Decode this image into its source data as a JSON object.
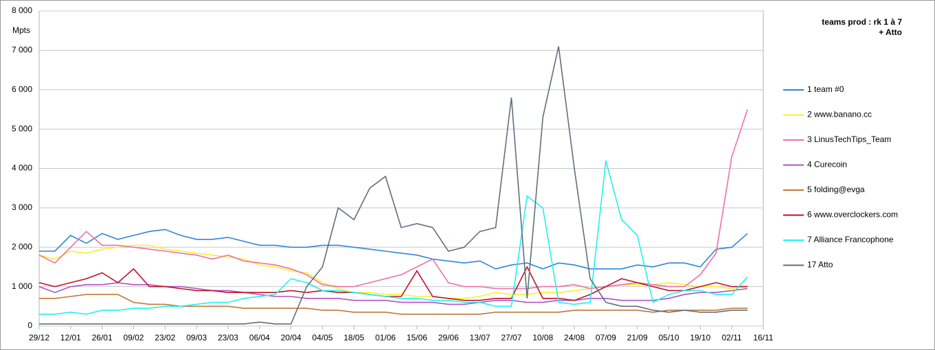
{
  "chart_data": {
    "type": "line",
    "title": "teams prod :  rk 1 à 7",
    "subtitle": "+ Atto",
    "y_label": "Mpts",
    "x": [
      0,
      7,
      14,
      21,
      28,
      35,
      42,
      49,
      56,
      63,
      70,
      77,
      84,
      91,
      98,
      105,
      112,
      119,
      126,
      133,
      140,
      147,
      154,
      161,
      168,
      175,
      182,
      189,
      196,
      203,
      210,
      217,
      224,
      231,
      238,
      245,
      252,
      259,
      266,
      273,
      280,
      287,
      294,
      301,
      308,
      315
    ],
    "xlim": [
      0,
      322
    ],
    "xticks": [
      {
        "value": 0,
        "label": "29/12"
      },
      {
        "value": 14,
        "label": "12/01"
      },
      {
        "value": 28,
        "label": "26/01"
      },
      {
        "value": 42,
        "label": "09/02"
      },
      {
        "value": 56,
        "label": "23/02"
      },
      {
        "value": 70,
        "label": "09/03"
      },
      {
        "value": 84,
        "label": "23/03"
      },
      {
        "value": 98,
        "label": "06/04"
      },
      {
        "value": 112,
        "label": "20/04"
      },
      {
        "value": 126,
        "label": "04/05"
      },
      {
        "value": 140,
        "label": "18/05"
      },
      {
        "value": 154,
        "label": "01/06"
      },
      {
        "value": 168,
        "label": "15/06"
      },
      {
        "value": 182,
        "label": "29/06"
      },
      {
        "value": 196,
        "label": "13/07"
      },
      {
        "value": 210,
        "label": "27/07"
      },
      {
        "value": 224,
        "label": "10/08"
      },
      {
        "value": 238,
        "label": "24/08"
      },
      {
        "value": 252,
        "label": "07/09"
      },
      {
        "value": 266,
        "label": "21/09"
      },
      {
        "value": 280,
        "label": "05/10"
      },
      {
        "value": 294,
        "label": "19/10"
      },
      {
        "value": 308,
        "label": "02/11"
      },
      {
        "value": 322,
        "label": "16/11"
      }
    ],
    "ylim": [
      0,
      8000
    ],
    "yticks": [
      0,
      {
        "value": 1000,
        "label": "1 000"
      },
      {
        "value": 2000,
        "label": "2 000"
      },
      {
        "value": 3000,
        "label": "3 000"
      },
      {
        "value": 4000,
        "label": "4 000"
      },
      {
        "value": 5000,
        "label": "5 000"
      },
      {
        "value": 6000,
        "label": "6 000"
      },
      {
        "value": 7000,
        "label": "7 000"
      },
      {
        "value": 8000,
        "label": "8 000"
      }
    ],
    "grid": true,
    "legend": "right",
    "series": [
      {
        "name": "1 team #0",
        "color": "#2a86d9",
        "values": [
          1900,
          1900,
          2300,
          2100,
          2350,
          2200,
          2300,
          2400,
          2450,
          2300,
          2200,
          2200,
          2250,
          2150,
          2050,
          2050,
          2000,
          2000,
          2050,
          2050,
          2000,
          1950,
          1900,
          1850,
          1800,
          1700,
          1650,
          1600,
          1650,
          1450,
          1550,
          1600,
          1450,
          1600,
          1550,
          1450,
          1450,
          1450,
          1550,
          1500,
          1600,
          1600,
          1500,
          1950,
          2000,
          2350
        ]
      },
      {
        "name": "2 www.banano.cc",
        "color": "#f2f230",
        "values": [
          1800,
          1700,
          1900,
          1850,
          1950,
          2000,
          2050,
          2050,
          1950,
          1900,
          1850,
          1800,
          1750,
          1700,
          1550,
          1500,
          1400,
          1350,
          1100,
          950,
          850,
          850,
          800,
          800,
          750,
          750,
          700,
          700,
          750,
          850,
          800,
          800,
          850,
          850,
          900,
          950,
          1000,
          1050,
          1050,
          1050,
          1100,
          1050,
          1000,
          1000,
          950,
          1000
        ]
      },
      {
        "name": "3 LinusTechTips_Team",
        "color": "#ee6fa8",
        "values": [
          1800,
          1600,
          2000,
          2400,
          2050,
          2050,
          2000,
          1950,
          1900,
          1850,
          1800,
          1700,
          1800,
          1650,
          1600,
          1550,
          1450,
          1300,
          1050,
          1000,
          1000,
          1100,
          1200,
          1300,
          1500,
          1700,
          1100,
          1000,
          1000,
          950,
          950,
          950,
          1000,
          1000,
          1050,
          950,
          1000,
          1050,
          1100,
          1050,
          1000,
          1000,
          1300,
          1850,
          4300,
          5500
        ]
      },
      {
        "name": "4 Curecoin",
        "color": "#b050c8",
        "values": [
          1000,
          850,
          1000,
          1050,
          1050,
          1100,
          1050,
          1050,
          1000,
          1000,
          950,
          900,
          900,
          850,
          800,
          750,
          750,
          700,
          700,
          700,
          650,
          650,
          650,
          600,
          600,
          600,
          550,
          550,
          600,
          650,
          650,
          600,
          600,
          650,
          650,
          700,
          700,
          650,
          650,
          650,
          700,
          800,
          850,
          850,
          900,
          950
        ]
      },
      {
        "name": "5 folding@evga",
        "color": "#c07838",
        "values": [
          700,
          700,
          750,
          800,
          800,
          800,
          600,
          550,
          550,
          500,
          500,
          500,
          500,
          450,
          450,
          450,
          450,
          450,
          400,
          400,
          350,
          350,
          350,
          300,
          300,
          300,
          300,
          300,
          300,
          350,
          350,
          350,
          350,
          350,
          400,
          400,
          400,
          400,
          400,
          350,
          400,
          400,
          400,
          400,
          450,
          450
        ]
      },
      {
        "name": "6 www.overclockers.com",
        "color": "#c0102a",
        "values": [
          1100,
          1000,
          1100,
          1200,
          1350,
          1100,
          1450,
          1000,
          1000,
          950,
          900,
          900,
          850,
          850,
          850,
          850,
          900,
          850,
          900,
          850,
          850,
          800,
          750,
          750,
          1400,
          750,
          700,
          650,
          650,
          700,
          700,
          1500,
          700,
          700,
          650,
          800,
          1000,
          1200,
          1100,
          1000,
          900,
          900,
          1000,
          1100,
          1000,
          1000
        ]
      },
      {
        "name": "7 Alliance Francophone",
        "color": "#22f0f0",
        "values": [
          300,
          300,
          350,
          300,
          400,
          400,
          450,
          450,
          500,
          500,
          550,
          600,
          600,
          700,
          750,
          800,
          1200,
          1100,
          900,
          900,
          850,
          800,
          750,
          700,
          700,
          650,
          650,
          600,
          600,
          500,
          500,
          3300,
          3000,
          600,
          550,
          600,
          4200,
          2700,
          2300,
          600,
          800,
          900,
          900,
          800,
          800,
          1250
        ]
      },
      {
        "name": "17 Atto",
        "color": "#5e6e7e",
        "values": [
          50,
          50,
          50,
          50,
          50,
          50,
          50,
          50,
          50,
          50,
          50,
          50,
          50,
          50,
          100,
          50,
          50,
          1000,
          1500,
          3000,
          2700,
          3500,
          3800,
          2500,
          2600,
          2500,
          1900,
          2000,
          2400,
          2500,
          5800,
          700,
          5300,
          7100,
          4000,
          1200,
          600,
          500,
          500,
          400,
          350,
          400,
          350,
          350,
          400,
          400
        ]
      }
    ]
  }
}
